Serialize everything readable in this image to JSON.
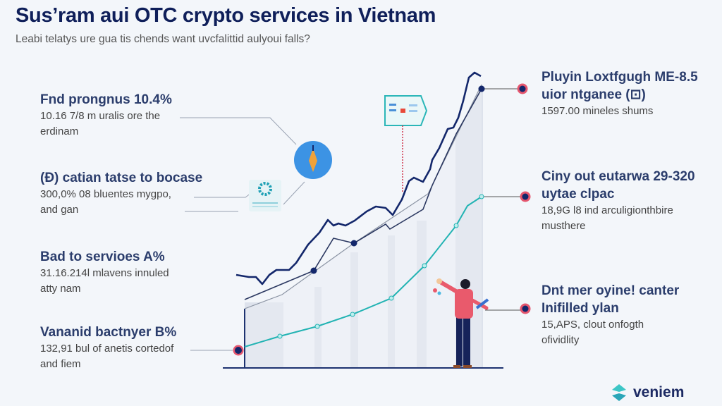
{
  "header": {
    "title": "Sus’ram aui OTC crypto services in Vietnam",
    "subtitle": "Leabi telatys ure gua tis chends want uvcfalittid aulyoui falls?"
  },
  "left_blocks": [
    {
      "heading": "Fnd prongnus 10.4%",
      "body": "10.16 7/8 m uralis ore the\nerdinam"
    },
    {
      "heading": "(Đ) catian tatse to bocase",
      "body": "300,0% 08 bluentes mygpo,\nand gan"
    },
    {
      "heading": "Bad to servioes A%",
      "body": "31.16.214l mlavens innuled\natty nam"
    },
    {
      "heading": "Vananid bactnyer B%",
      "body": "132,91 bul of anetis cortedof\nand fiem"
    }
  ],
  "right_blocks": [
    {
      "heading": "Pluyin Loxtfgugh ME-8.5\nuior ntganee (⊡)",
      "body": "1597.00 mineles shums"
    },
    {
      "heading": "Ciny out eutarwa 29-320\nuytae clpac",
      "body": "18,9G l8 ind arculigionthbire\nmusthere"
    },
    {
      "heading": "Dnt mer oyine! canter\nInifilled ylan",
      "body": "15,APS, clout onfogth\nofividlity"
    }
  ],
  "logo": {
    "text": "veniem",
    "icon": "teal-leaf-logo-icon"
  },
  "icons": [
    "rocket-badge-icon",
    "gear-card-icon",
    "document-card-icon",
    "person-illustration"
  ],
  "colors": {
    "navy": "#13276b",
    "teal": "#22b3b3",
    "pink": "#e5566e",
    "bar": "#dde2ec",
    "background": "#f3f6fa"
  }
}
